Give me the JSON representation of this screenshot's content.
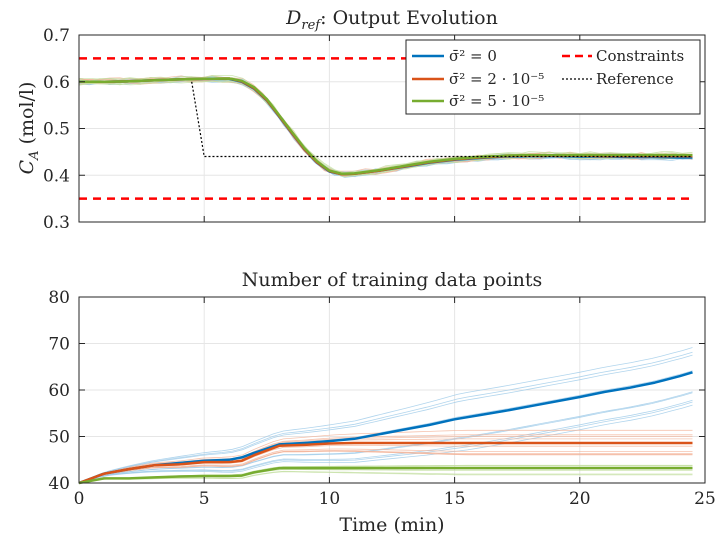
{
  "chart_data": [
    {
      "id": "top",
      "type": "line",
      "title_main": "D",
      "title_sub": "ref",
      "title_rest": ": Output Evolution",
      "ylabel_main": "C",
      "ylabel_sub": "A",
      "ylabel_unit": " (mol/l)",
      "xlim": [
        0,
        25
      ],
      "ylim": [
        0.3,
        0.7
      ],
      "xticks": [
        0,
        5,
        10,
        15,
        20,
        25
      ],
      "yticks": [
        0.3,
        0.4,
        0.5,
        0.6,
        0.7
      ],
      "ytick_labels": [
        "0.3",
        "0.4",
        "0.5",
        "0.6",
        "0.7"
      ],
      "grid": true,
      "legend_position": "top-right",
      "series": [
        {
          "name": "σ̄² = 0",
          "color": "#0072BD",
          "x": [
            0,
            1,
            2,
            3,
            4,
            5,
            6,
            6.5,
            7,
            7.5,
            8,
            8.5,
            9,
            9.5,
            10,
            10.5,
            11,
            12,
            13,
            14,
            15,
            16,
            17,
            18,
            19,
            20,
            21,
            22,
            23,
            24,
            24.5
          ],
          "y": [
            0.6,
            0.6,
            0.601,
            0.603,
            0.605,
            0.606,
            0.606,
            0.6,
            0.585,
            0.56,
            0.525,
            0.49,
            0.455,
            0.427,
            0.408,
            0.402,
            0.403,
            0.41,
            0.418,
            0.427,
            0.433,
            0.437,
            0.44,
            0.441,
            0.441,
            0.44,
            0.44,
            0.439,
            0.439,
            0.438,
            0.438
          ]
        },
        {
          "name": "σ̄² = 2 · 10⁻⁵",
          "color": "#D95319",
          "x": [
            0,
            1,
            2,
            3,
            4,
            5,
            6,
            6.5,
            7,
            7.5,
            8,
            8.5,
            9,
            9.5,
            10,
            10.5,
            11,
            12,
            13,
            14,
            15,
            16,
            17,
            18,
            19,
            20,
            21,
            22,
            23,
            24,
            24.5
          ],
          "y": [
            0.6,
            0.6,
            0.601,
            0.603,
            0.605,
            0.606,
            0.607,
            0.601,
            0.586,
            0.561,
            0.526,
            0.491,
            0.456,
            0.428,
            0.409,
            0.402,
            0.403,
            0.41,
            0.419,
            0.428,
            0.434,
            0.438,
            0.441,
            0.442,
            0.442,
            0.442,
            0.441,
            0.441,
            0.441,
            0.441,
            0.441
          ]
        },
        {
          "name": "σ̄² = 5 · 10⁻⁵",
          "color": "#77AC30",
          "x": [
            0,
            1,
            2,
            3,
            4,
            5,
            6,
            6.5,
            7,
            7.5,
            8,
            8.5,
            9,
            9.5,
            10,
            10.5,
            11,
            12,
            13,
            14,
            15,
            16,
            17,
            18,
            19,
            20,
            21,
            22,
            23,
            24,
            24.5
          ],
          "y": [
            0.6,
            0.6,
            0.601,
            0.603,
            0.605,
            0.606,
            0.607,
            0.602,
            0.588,
            0.563,
            0.528,
            0.493,
            0.458,
            0.43,
            0.41,
            0.403,
            0.404,
            0.411,
            0.42,
            0.429,
            0.435,
            0.439,
            0.442,
            0.443,
            0.443,
            0.443,
            0.443,
            0.443,
            0.443,
            0.443,
            0.443
          ]
        },
        {
          "name": "Constraints",
          "color": "#FF0000",
          "style": "dashed",
          "x": [
            0,
            24.5
          ],
          "y": [
            0.65,
            0.65
          ],
          "x2": [
            0,
            24.5
          ],
          "y2": [
            0.35,
            0.35
          ]
        },
        {
          "name": "Reference",
          "color": "#000000",
          "style": "dotted",
          "x": [
            4.5,
            5,
            24.5
          ],
          "y": [
            0.6,
            0.44,
            0.44
          ]
        }
      ]
    },
    {
      "id": "bottom",
      "type": "line",
      "title": "Number of training data points",
      "xlabel": "Time (min)",
      "xlim": [
        0,
        25
      ],
      "ylim": [
        40,
        80
      ],
      "xticks": [
        0,
        5,
        10,
        15,
        20,
        25
      ],
      "yticks": [
        40,
        50,
        60,
        70,
        80
      ],
      "grid": true,
      "series": [
        {
          "name": "σ̄² = 0",
          "color": "#0072BD",
          "x": [
            0,
            1,
            2,
            3,
            4,
            5,
            6,
            6.5,
            7,
            8,
            9,
            10,
            11,
            12,
            13,
            14,
            15,
            16,
            17,
            18,
            19,
            20,
            21,
            22,
            23,
            24,
            24.5
          ],
          "y": [
            40,
            42,
            43,
            43.8,
            44.3,
            44.8,
            45,
            45.5,
            46.5,
            48.3,
            48.6,
            49,
            49.5,
            50.5,
            51.5,
            52.5,
            53.7,
            54.6,
            55.5,
            56.5,
            57.5,
            58.5,
            59.6,
            60.5,
            61.6,
            63,
            63.8
          ]
        },
        {
          "name": "σ̄² = 2 · 10⁻⁵",
          "color": "#D95319",
          "x": [
            0,
            1,
            2,
            3,
            4,
            5,
            6,
            6.5,
            7,
            8,
            9,
            10,
            11,
            12,
            14,
            16,
            18,
            20,
            22,
            24,
            24.5
          ],
          "y": [
            40,
            42,
            43,
            43.8,
            44,
            44.5,
            44.5,
            44.8,
            46,
            48,
            48.2,
            48.5,
            48.6,
            48.6,
            48.6,
            48.6,
            48.6,
            48.6,
            48.6,
            48.6,
            48.6
          ]
        },
        {
          "name": "σ̄² = 5 · 10⁻⁵",
          "color": "#77AC30",
          "x": [
            0,
            1,
            2,
            3,
            4,
            5,
            6,
            6.5,
            7,
            8,
            9,
            10,
            12,
            14,
            16,
            18,
            20,
            22,
            24,
            24.5
          ],
          "y": [
            40,
            41,
            41,
            41.2,
            41.4,
            41.5,
            41.5,
            41.6,
            42.3,
            43.2,
            43.2,
            43.2,
            43.2,
            43.2,
            43.2,
            43.2,
            43.2,
            43.2,
            43.2,
            43.2
          ]
        }
      ]
    }
  ]
}
